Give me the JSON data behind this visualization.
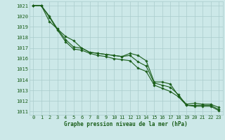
{
  "title": "Graphe pression niveau de la mer (hPa)",
  "bg_color": "#cce8e8",
  "grid_major_color": "#aacccc",
  "grid_minor_color": "#c0dcdc",
  "line_color": "#1a5e1a",
  "x_ticks": [
    0,
    1,
    2,
    3,
    4,
    5,
    6,
    7,
    8,
    9,
    10,
    11,
    12,
    13,
    14,
    15,
    16,
    17,
    18,
    19,
    20,
    21,
    22,
    23
  ],
  "ylim": [
    1010.7,
    1021.4
  ],
  "yticks": [
    1011,
    1012,
    1013,
    1014,
    1015,
    1016,
    1017,
    1018,
    1019,
    1020,
    1021
  ],
  "series": [
    [
      1021.0,
      1021.0,
      1020.0,
      1018.8,
      1017.8,
      1017.1,
      1017.0,
      1016.6,
      1016.5,
      1016.4,
      1016.3,
      1016.2,
      1016.3,
      1015.7,
      1015.3,
      1013.7,
      1013.5,
      1013.3,
      1012.6,
      1011.6,
      1011.6,
      1011.6,
      1011.6,
      1011.2
    ],
    [
      1021.0,
      1021.0,
      1019.9,
      1018.7,
      1017.6,
      1016.9,
      1016.8,
      1016.5,
      1016.3,
      1016.2,
      1016.0,
      1015.9,
      1015.8,
      1015.1,
      1014.8,
      1013.5,
      1013.2,
      1012.9,
      1012.4,
      1011.6,
      1011.5,
      1011.5,
      1011.5,
      1011.1
    ],
    [
      1021.0,
      1021.0,
      1019.5,
      1018.8,
      1018.1,
      1017.7,
      1017.0,
      1016.6,
      1016.5,
      1016.4,
      1016.3,
      1016.2,
      1016.5,
      1016.3,
      1015.8,
      1013.8,
      1013.8,
      1013.6,
      1012.5,
      1011.7,
      1011.8,
      1011.7,
      1011.7,
      1011.4
    ]
  ],
  "tick_fontsize": 5.0,
  "label_fontsize": 5.5,
  "marker_size": 1.8,
  "linewidth": 0.8
}
